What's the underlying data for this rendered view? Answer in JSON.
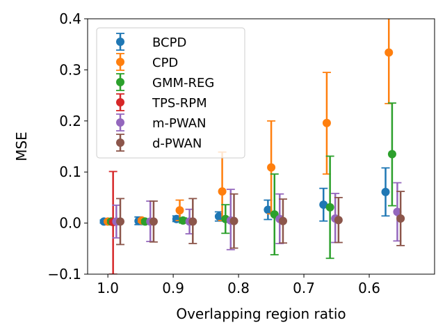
{
  "chart_data": {
    "type": "scatter",
    "subtype": "errorbar",
    "title": "",
    "xlabel": "Overlapping region ratio",
    "ylabel": "MSE",
    "xlim": [
      1.031,
      0.5
    ],
    "ylim": [
      -0.1,
      0.4
    ],
    "x_inverted": true,
    "xticks": [
      1.0,
      0.9,
      0.8,
      0.7,
      0.6
    ],
    "xtick_labels": [
      "1.0",
      "0.9",
      "0.8",
      "0.7",
      "0.6"
    ],
    "yticks": [
      -0.1,
      0.0,
      0.1,
      0.2,
      0.3,
      0.4
    ],
    "ytick_labels": [
      "−0.1",
      "0.0",
      "0.1",
      "0.2",
      "0.3",
      "0.4"
    ],
    "grid": false,
    "legend_position": "upper-left",
    "series": [
      {
        "name": "BCPD",
        "color": "#1f77b4",
        "points": [
          {
            "x": 1.006,
            "y": 0.003,
            "lo": 0.0,
            "hi": 0.006
          },
          {
            "x": 0.953,
            "y": 0.004,
            "lo": -0.003,
            "hi": 0.012
          },
          {
            "x": 0.895,
            "y": 0.008,
            "lo": 0.003,
            "hi": 0.014
          },
          {
            "x": 0.83,
            "y": 0.013,
            "lo": 0.004,
            "hi": 0.022
          },
          {
            "x": 0.755,
            "y": 0.026,
            "lo": 0.007,
            "hi": 0.045
          },
          {
            "x": 0.67,
            "y": 0.036,
            "lo": 0.004,
            "hi": 0.068
          },
          {
            "x": 0.575,
            "y": 0.061,
            "lo": 0.014,
            "hi": 0.108
          }
        ]
      },
      {
        "name": "CPD",
        "color": "#ff7f0e",
        "points": [
          {
            "x": 1.0,
            "y": 0.003,
            "lo": 0.001,
            "hi": 0.005
          },
          {
            "x": 0.948,
            "y": 0.005,
            "lo": 0.002,
            "hi": 0.008
          },
          {
            "x": 0.89,
            "y": 0.025,
            "lo": 0.005,
            "hi": 0.045
          },
          {
            "x": 0.825,
            "y": 0.062,
            "lo": 0.005,
            "hi": 0.139
          },
          {
            "x": 0.75,
            "y": 0.109,
            "lo": 0.018,
            "hi": 0.2
          },
          {
            "x": 0.665,
            "y": 0.196,
            "lo": 0.096,
            "hi": 0.295
          },
          {
            "x": 0.57,
            "y": 0.334,
            "lo": 0.234,
            "hi": 0.434
          }
        ]
      },
      {
        "name": "GMM-REG",
        "color": "#2ca02c",
        "points": [
          {
            "x": 0.995,
            "y": 0.003,
            "lo": 0.0,
            "hi": 0.006
          },
          {
            "x": 0.943,
            "y": 0.003,
            "lo": 0.0,
            "hi": 0.006
          },
          {
            "x": 0.885,
            "y": 0.005,
            "lo": 0.0,
            "hi": 0.01
          },
          {
            "x": 0.82,
            "y": 0.008,
            "lo": -0.02,
            "hi": 0.036
          },
          {
            "x": 0.745,
            "y": 0.017,
            "lo": -0.062,
            "hi": 0.096
          },
          {
            "x": 0.66,
            "y": 0.031,
            "lo": -0.069,
            "hi": 0.131
          },
          {
            "x": 0.565,
            "y": 0.135,
            "lo": 0.034,
            "hi": 0.235
          }
        ]
      },
      {
        "name": "TPS-RPM",
        "color": "#d62728",
        "points": [
          {
            "x": 0.992,
            "y": 0.002,
            "lo": -0.1,
            "hi": 0.101
          }
        ]
      },
      {
        "name": "m-PWAN",
        "color": "#9467bd",
        "points": [
          {
            "x": 0.987,
            "y": 0.003,
            "lo": -0.029,
            "hi": 0.035
          },
          {
            "x": 0.935,
            "y": 0.003,
            "lo": -0.036,
            "hi": 0.043
          },
          {
            "x": 0.875,
            "y": 0.003,
            "lo": -0.021,
            "hi": 0.027
          },
          {
            "x": 0.812,
            "y": 0.005,
            "lo": -0.052,
            "hi": 0.066
          },
          {
            "x": 0.737,
            "y": 0.008,
            "lo": -0.04,
            "hi": 0.057
          },
          {
            "x": 0.652,
            "y": 0.009,
            "lo": -0.038,
            "hi": 0.058
          },
          {
            "x": 0.557,
            "y": 0.022,
            "lo": -0.035,
            "hi": 0.079
          }
        ]
      },
      {
        "name": "d-PWAN",
        "color": "#8c564b",
        "points": [
          {
            "x": 0.981,
            "y": 0.003,
            "lo": -0.042,
            "hi": 0.048
          },
          {
            "x": 0.93,
            "y": 0.003,
            "lo": -0.037,
            "hi": 0.043
          },
          {
            "x": 0.87,
            "y": 0.003,
            "lo": -0.04,
            "hi": 0.048
          },
          {
            "x": 0.807,
            "y": 0.004,
            "lo": -0.049,
            "hi": 0.057
          },
          {
            "x": 0.732,
            "y": 0.004,
            "lo": -0.039,
            "hi": 0.047
          },
          {
            "x": 0.647,
            "y": 0.006,
            "lo": -0.038,
            "hi": 0.05
          },
          {
            "x": 0.552,
            "y": 0.009,
            "lo": -0.044,
            "hi": 0.062
          }
        ]
      }
    ]
  }
}
